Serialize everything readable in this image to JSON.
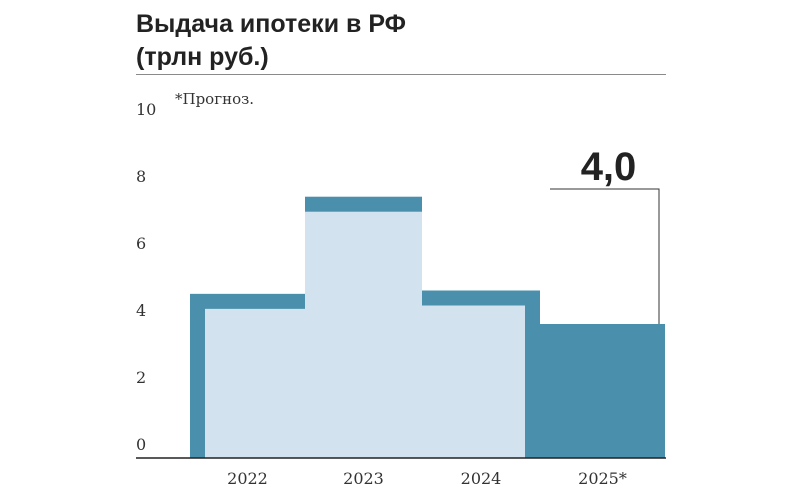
{
  "title_line1": "Выдача ипотеки в РФ",
  "title_line2": "(трлн руб.)",
  "note": "*Прогноз.",
  "callout": "4,0",
  "colors": {
    "outline": "#4a8fab",
    "fill_light": "#d2e2ee",
    "fill_forecast": "#4a8fab",
    "axis": "#222222",
    "text": "#333333"
  },
  "chart_data": {
    "type": "bar",
    "categories": [
      "2022",
      "2023",
      "2024",
      "2025*"
    ],
    "values": [
      4.9,
      7.8,
      5.0,
      4.0
    ],
    "forecast": [
      false,
      false,
      false,
      true
    ],
    "ylim": [
      0,
      10
    ],
    "yticks": [
      "0",
      "2",
      "4",
      "6",
      "8",
      "10"
    ],
    "grid": false,
    "xlabel": "",
    "ylabel": ""
  }
}
